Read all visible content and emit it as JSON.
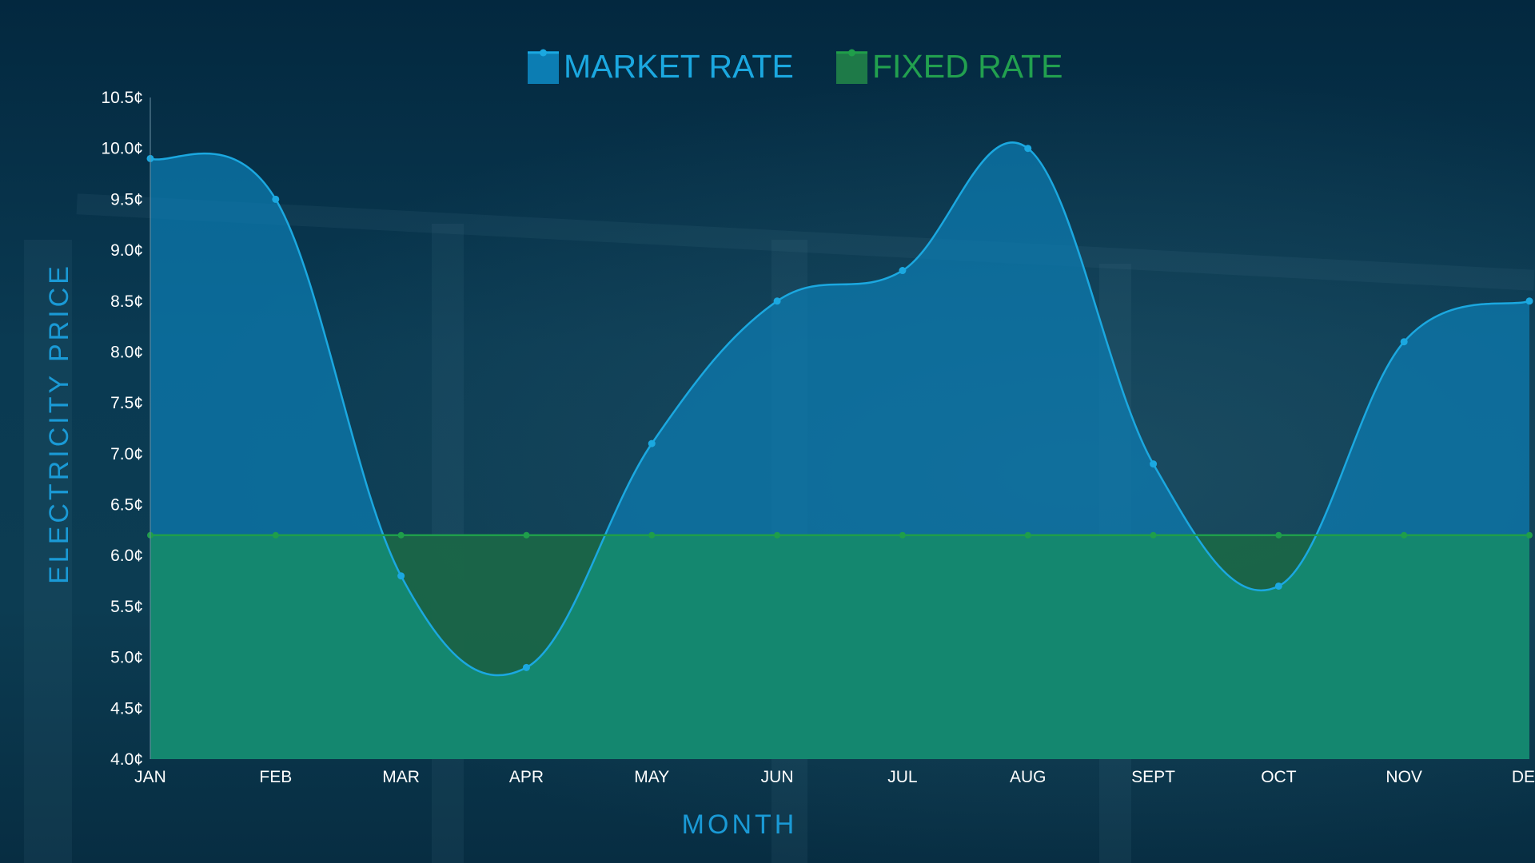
{
  "chart_data": {
    "type": "area",
    "categories": [
      "JAN",
      "FEB",
      "MAR",
      "APR",
      "MAY",
      "JUN",
      "JUL",
      "AUG",
      "SEPT",
      "OCT",
      "NOV",
      "DEC"
    ],
    "series": [
      {
        "name": "MARKET RATE",
        "values": [
          9.9,
          9.5,
          5.8,
          4.9,
          7.1,
          8.5,
          8.8,
          10.0,
          6.9,
          5.7,
          8.1,
          8.5
        ]
      },
      {
        "name": "FIXED RATE",
        "values": [
          6.2,
          6.2,
          6.2,
          6.2,
          6.2,
          6.2,
          6.2,
          6.2,
          6.2,
          6.2,
          6.2,
          6.2
        ]
      }
    ],
    "xlabel": "MONTH",
    "ylabel": "ELECTRICITY PRICE",
    "ylim": [
      4.0,
      10.5
    ],
    "ytick_step": 0.5,
    "ytick_labels": [
      "4.0¢",
      "4.5¢",
      "5.0¢",
      "5.5¢",
      "6.0¢",
      "6.5¢",
      "7.0¢",
      "7.5¢",
      "8.0¢",
      "8.5¢",
      "9.0¢",
      "9.5¢",
      "10.0¢",
      "10.5¢"
    ],
    "legend_position": "top-center",
    "grid": false,
    "colors": {
      "market_line": "#1ba8e0",
      "market_fill": "#0c7db3",
      "fixed_line": "#1f9e4a",
      "fixed_fill": "#15886e",
      "fixed_text": "#22a04f",
      "market_text": "#1ba8e0"
    }
  }
}
